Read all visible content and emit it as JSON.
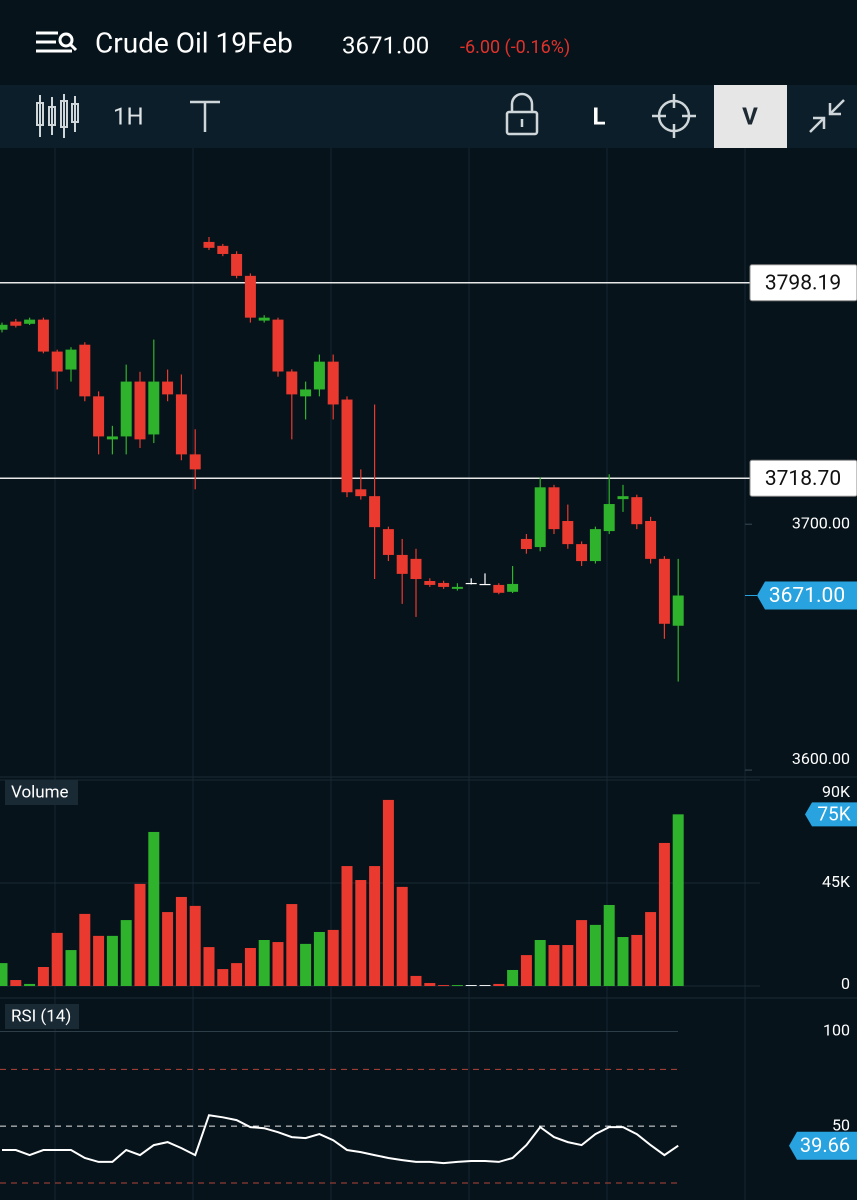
{
  "header": {
    "title": "Crude Oil 19Feb",
    "price": "3671.00",
    "change": "-6.00 (-0.16%)"
  },
  "toolbar": {
    "interval": "1H",
    "buttons": [
      "L",
      "V"
    ]
  },
  "chart_data": [
    {
      "type": "candlestick",
      "open": [
        3779.1,
        3782.4,
        3781.5,
        3783.2,
        3770.2,
        3762.9,
        3773.0,
        3752.0,
        3734.5,
        3735.7,
        3758.0,
        3736.5,
        3758.0,
        3752.8,
        3728.4,
        3814.8,
        3813.2,
        3809.9,
        3801.0,
        3782.8,
        3783.2,
        3762.1,
        3752.0,
        3754.8,
        3766.1,
        3750.7,
        3714.2,
        3711.4,
        3698.0,
        3687.5,
        3685.9,
        3676.9,
        3676.1,
        3673.7,
        3676.1,
        3675.7,
        3675.3,
        3672.5,
        3694.0,
        3690.7,
        3715.0,
        3701.3,
        3691.9,
        3685.0,
        3697.2,
        3710.2,
        3711.0,
        3701.3,
        3685.9,
        3658.7
      ],
      "high": [
        3782.0,
        3783.5,
        3784.0,
        3784.0,
        3771.0,
        3772.0,
        3774.0,
        3754.0,
        3740.0,
        3764.9,
        3762.0,
        3775.1,
        3762.9,
        3760.9,
        3738.6,
        3816.8,
        3814.0,
        3811.0,
        3802.0,
        3785.0,
        3784.0,
        3763.0,
        3758.0,
        3769.0,
        3769.0,
        3752.0,
        3722.3,
        3748.7,
        3699.0,
        3694.0,
        3690.0,
        3678.0,
        3677.0,
        3676.0,
        3678.0,
        3680.0,
        3676.0,
        3683.0,
        3696.0,
        3719.1,
        3716.0,
        3708.0,
        3693.0,
        3699.0,
        3720.3,
        3716.0,
        3712.0,
        3703.0,
        3687.0,
        3685.9
      ],
      "low": [
        3778.0,
        3780.0,
        3781.0,
        3769.5,
        3754.8,
        3758.0,
        3750.0,
        3728.4,
        3728.4,
        3728.4,
        3731.0,
        3733.0,
        3750.0,
        3726.0,
        3714.2,
        3811.5,
        3809.0,
        3800.0,
        3782.0,
        3782.0,
        3760.0,
        3734.5,
        3742.6,
        3752.0,
        3742.6,
        3711.0,
        3710.0,
        3677.7,
        3685.0,
        3667.6,
        3662.3,
        3674.5,
        3673.7,
        3673.0,
        3675.5,
        3675.7,
        3671.5,
        3672.0,
        3688.0,
        3689.0,
        3696.0,
        3690.0,
        3683.0,
        3684.0,
        3696.0,
        3705.0,
        3698.0,
        3684.0,
        3653.4,
        3636.0
      ],
      "close": [
        3781.1,
        3780.7,
        3783.2,
        3770.2,
        3762.1,
        3771.0,
        3752.0,
        3735.7,
        3735.7,
        3758.0,
        3734.5,
        3758.0,
        3752.8,
        3728.4,
        3722.3,
        3812.4,
        3809.9,
        3801.0,
        3784.0,
        3784.0,
        3762.1,
        3752.8,
        3754.8,
        3766.1,
        3748.7,
        3713.0,
        3711.4,
        3698.8,
        3687.5,
        3679.8,
        3677.7,
        3675.3,
        3674.5,
        3674.5,
        3676.1,
        3675.7,
        3672.1,
        3675.7,
        3689.9,
        3715.0,
        3698.0,
        3691.9,
        3685.0,
        3698.0,
        3708.2,
        3711.4,
        3700.0,
        3685.9,
        3659.5,
        3671.0
      ],
      "up_color": "#2fb32c",
      "down_color": "#ea3a2f",
      "flat_color": "#ffffff",
      "ylim": [
        3598,
        3853
      ],
      "yticks": [
        {
          "value": 3600,
          "label": "3600.00"
        },
        {
          "value": 3700,
          "label": "3700.00"
        }
      ],
      "lines": [
        {
          "value": 3798.19,
          "label": "3798.19"
        },
        {
          "value": 3718.7,
          "label": "3718.70"
        }
      ],
      "last": {
        "value": 3671,
        "label": "3671.00"
      }
    },
    {
      "type": "bar",
      "title": "Volume",
      "values": [
        10000,
        2600,
        900,
        8300,
        23200,
        15700,
        31500,
        21900,
        21900,
        28800,
        44600,
        67300,
        32300,
        38900,
        35000,
        17000,
        7400,
        10000,
        16600,
        20100,
        19200,
        35800,
        18400,
        23600,
        24500,
        52400,
        46300,
        52400,
        81300,
        43300,
        4400,
        1300,
        400,
        400,
        400,
        400,
        900,
        7000,
        13500,
        20100,
        17900,
        17900,
        28800,
        26700,
        35400,
        21400,
        22300,
        32300,
        62500,
        75000
      ],
      "last_value_label": "75K",
      "ylim": [
        0,
        90000
      ],
      "yticks": [
        0,
        {
          "value": 45000,
          "label": "45K"
        },
        {
          "value": 90000,
          "label": "90K"
        }
      ]
    },
    {
      "type": "line",
      "title": "RSI (14)",
      "values": [
        37.4,
        37.4,
        34.7,
        37.4,
        37.4,
        37.4,
        33.2,
        31.1,
        31.1,
        37.4,
        34.7,
        40.0,
        41.6,
        38.4,
        34.7,
        55.8,
        54.7,
        53.2,
        49.5,
        48.9,
        46.8,
        44.2,
        43.7,
        45.8,
        42.6,
        37.4,
        36.3,
        34.7,
        33.2,
        32.1,
        31.1,
        31.1,
        30.5,
        31.1,
        31.6,
        31.6,
        31.1,
        33.2,
        40.0,
        49.5,
        44.2,
        41.6,
        40.0,
        45.8,
        49.5,
        49.5,
        45.8,
        40.0,
        34.7,
        39.66
      ],
      "color": "#ffffff",
      "band_color": "#b2443a",
      "ylim": [
        11,
        114
      ],
      "yticks": [
        50,
        100
      ],
      "bands": [
        80,
        20
      ],
      "last": 39.66
    }
  ]
}
